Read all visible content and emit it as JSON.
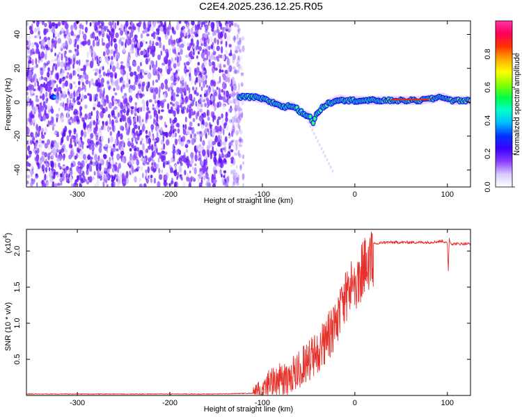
{
  "title": "C2E4.2025.236.12.25.R05",
  "chart_data": [
    {
      "type": "heatmap",
      "title": "C2E4.2025.236.12.25.R05",
      "xlabel": "Height of straight line (km)",
      "ylabel": "Frequency (Hz)",
      "xlim": [
        -355,
        125
      ],
      "ylim": [
        -50,
        48
      ],
      "xticks": [
        -300,
        -200,
        -100,
        0,
        100
      ],
      "xtick_labels": [
        "-300",
        "-200",
        "-100",
        "0",
        "100"
      ],
      "yticks": [
        -40,
        -20,
        0,
        20,
        40
      ],
      "ytick_labels": [
        "-40",
        "-20",
        "0",
        "20",
        "40"
      ],
      "noise_region_x": [
        -355,
        -128
      ],
      "ridge": {
        "x": [
          -125,
          -110,
          -100,
          -95,
          -90,
          -85,
          -80,
          -75,
          -70,
          -65,
          -60,
          -55,
          -50,
          -47,
          -45,
          -42,
          -40,
          -35,
          -30,
          -25,
          -20,
          -15,
          -10,
          -5,
          0,
          10,
          20,
          30,
          40,
          50,
          60,
          70,
          80,
          85,
          90,
          95,
          100,
          105,
          110,
          125
        ],
        "y": [
          3,
          3,
          2,
          1,
          0,
          -1,
          -2,
          -3,
          -2,
          -3,
          -5,
          -7,
          -8,
          -10,
          -12,
          -8,
          -6,
          -3,
          -1,
          0,
          1,
          2,
          1,
          1,
          1,
          1,
          1,
          1,
          1,
          1,
          1,
          1,
          2,
          2,
          3,
          3,
          2,
          1,
          1,
          1
        ]
      },
      "colorbar": {
        "label": "Normalized spectral amplitude",
        "range": [
          0,
          1
        ],
        "ticks": [
          0.0,
          0.2,
          0.4,
          0.6,
          0.8
        ],
        "tick_labels": [
          "0.0",
          "0.2",
          "0.4",
          "0.6",
          "0.8"
        ],
        "colors": [
          "#ffffff",
          "#d8c8ff",
          "#8a3dff",
          "#3b00ff",
          "#0033ff",
          "#00bbff",
          "#00ffcc",
          "#00ff44",
          "#88ff00",
          "#ffff00",
          "#ffaa00",
          "#ff3300",
          "#ff0055",
          "#ff33aa"
        ]
      }
    },
    {
      "type": "line",
      "xlabel": "Height of straight line (km)",
      "ylabel": "SNR (10 * v/v)",
      "scale_label": "(x10",
      "scale_exponent": "4",
      "xlim": [
        -355,
        125
      ],
      "ylim": [
        0,
        2.3
      ],
      "xticks": [
        -300,
        -200,
        -100,
        0,
        100
      ],
      "xtick_labels": [
        "-300",
        "-200",
        "-100",
        "0",
        "100"
      ],
      "yticks": [
        0.5,
        1.0,
        1.5,
        2.0
      ],
      "ytick_labels": [
        "0.5",
        "1.0",
        "1.5",
        "2.0"
      ],
      "series": [
        {
          "name": "SNR",
          "color": "#e8312a",
          "x": [
            -355,
            -300,
            -250,
            -200,
            -150,
            -110,
            -105,
            -100,
            -95,
            -90,
            -85,
            -80,
            -75,
            -70,
            -65,
            -60,
            -55,
            -50,
            -45,
            -40,
            -35,
            -30,
            -25,
            -20,
            -15,
            -10,
            -5,
            0,
            5,
            10,
            15,
            20,
            25,
            30,
            40,
            50,
            60,
            70,
            80,
            90,
            95,
            100,
            101,
            102,
            103,
            105,
            110,
            120,
            125
          ],
          "y": [
            0.02,
            0.02,
            0.02,
            0.02,
            0.02,
            0.03,
            0.08,
            0.15,
            0.22,
            0.28,
            0.25,
            0.35,
            0.3,
            0.4,
            0.45,
            0.5,
            0.55,
            0.6,
            0.7,
            0.75,
            0.85,
            0.95,
            1.05,
            1.2,
            1.35,
            1.5,
            1.7,
            1.75,
            1.85,
            1.95,
            2.05,
            2.1,
            2.1,
            2.12,
            2.12,
            2.12,
            2.12,
            2.12,
            2.12,
            2.13,
            2.14,
            2.1,
            1.72,
            2.18,
            2.12,
            2.1,
            2.1,
            2.1,
            2.1
          ]
        }
      ]
    }
  ]
}
